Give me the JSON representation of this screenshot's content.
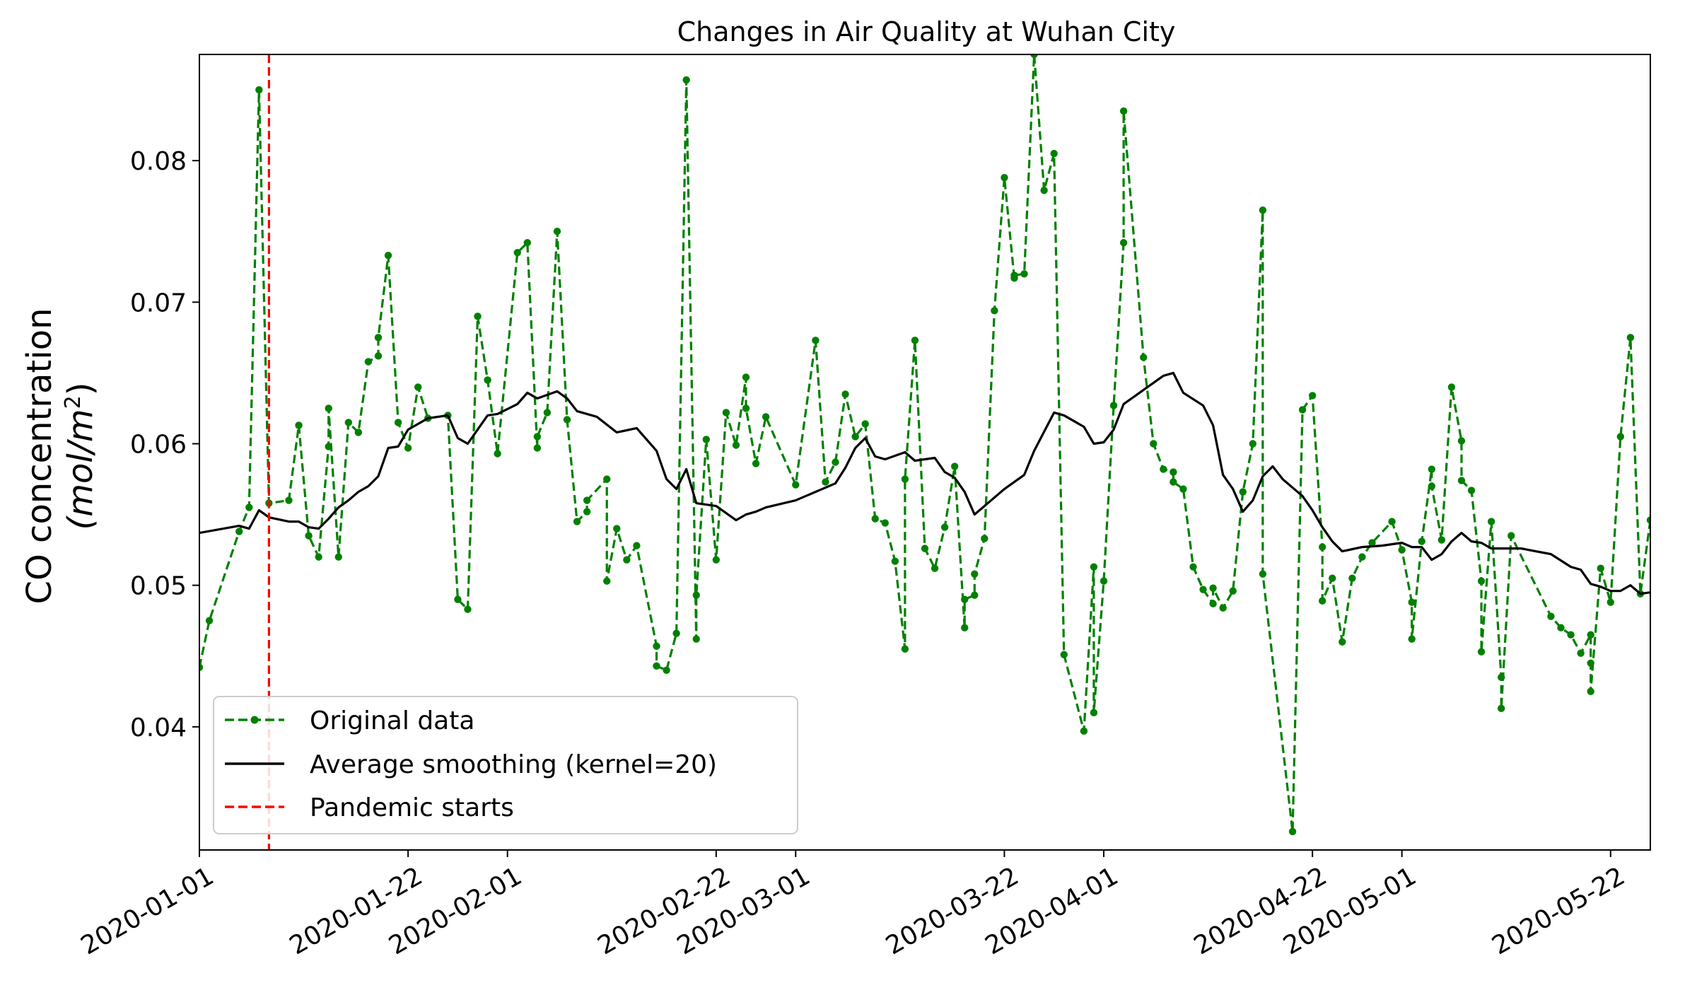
{
  "chart_data": {
    "type": "line",
    "title": "Changes in Air Quality at Wuhan City",
    "xlabel": "",
    "ylabel_line1": "CO concentration",
    "ylabel_line2": "(mol/m",
    "ylabel_sup": "2",
    "ylabel_close": ")",
    "xlim": [
      "2020-01-01",
      "2020-05-26"
    ],
    "ylim": [
      0.0313,
      0.0875
    ],
    "grid": false,
    "legend_position": "lower-left",
    "x_tick_labels": [
      "2020-01-01",
      "2020-01-22",
      "2020-02-01",
      "2020-02-22",
      "2020-03-01",
      "2020-03-22",
      "2020-04-01",
      "2020-04-22",
      "2020-05-01",
      "2020-05-22"
    ],
    "y_ticks": [
      0.04,
      0.05,
      0.06,
      0.07,
      0.08
    ],
    "y_tick_labels": [
      "0.04",
      "0.05",
      "0.06",
      "0.07",
      "0.08"
    ],
    "series": [
      {
        "name": "Original data",
        "color": "#008000",
        "style": "dashed-with-dots",
        "points": [
          [
            "2020-01-01",
            0.0442
          ],
          [
            "2020-01-02",
            0.0475
          ],
          [
            "2020-01-05",
            0.0538
          ],
          [
            "2020-01-06",
            0.0555
          ],
          [
            "2020-01-07",
            0.085
          ],
          [
            "2020-01-08",
            0.0558
          ],
          [
            "2020-01-10",
            0.056
          ],
          [
            "2020-01-11",
            0.0613
          ],
          [
            "2020-01-12",
            0.0535
          ],
          [
            "2020-01-13",
            0.052
          ],
          [
            "2020-01-14",
            0.0598
          ],
          [
            "2020-01-14",
            0.0625
          ],
          [
            "2020-01-15",
            0.052
          ],
          [
            "2020-01-16",
            0.0615
          ],
          [
            "2020-01-17",
            0.0608
          ],
          [
            "2020-01-18",
            0.0658
          ],
          [
            "2020-01-19",
            0.0662
          ],
          [
            "2020-01-19",
            0.0675
          ],
          [
            "2020-01-20",
            0.0733
          ],
          [
            "2020-01-21",
            0.0615
          ],
          [
            "2020-01-22",
            0.0597
          ],
          [
            "2020-01-23",
            0.064
          ],
          [
            "2020-01-24",
            0.0618
          ],
          [
            "2020-01-26",
            0.062
          ],
          [
            "2020-01-27",
            0.049
          ],
          [
            "2020-01-28",
            0.0483
          ],
          [
            "2020-01-29",
            0.069
          ],
          [
            "2020-01-30",
            0.0645
          ],
          [
            "2020-01-31",
            0.0593
          ],
          [
            "2020-02-02",
            0.0735
          ],
          [
            "2020-02-03",
            0.0742
          ],
          [
            "2020-02-04",
            0.0597
          ],
          [
            "2020-02-04",
            0.0605
          ],
          [
            "2020-02-05",
            0.0622
          ],
          [
            "2020-02-06",
            0.075
          ],
          [
            "2020-02-07",
            0.0617
          ],
          [
            "2020-02-08",
            0.0545
          ],
          [
            "2020-02-09",
            0.0552
          ],
          [
            "2020-02-09",
            0.056
          ],
          [
            "2020-02-11",
            0.0575
          ],
          [
            "2020-02-11",
            0.0503
          ],
          [
            "2020-02-12",
            0.054
          ],
          [
            "2020-02-13",
            0.0518
          ],
          [
            "2020-02-14",
            0.0528
          ],
          [
            "2020-02-16",
            0.0457
          ],
          [
            "2020-02-16",
            0.0443
          ],
          [
            "2020-02-17",
            0.044
          ],
          [
            "2020-02-18",
            0.0466
          ],
          [
            "2020-02-19",
            0.0857
          ],
          [
            "2020-02-20",
            0.0462
          ],
          [
            "2020-02-20",
            0.0493
          ],
          [
            "2020-02-21",
            0.0603
          ],
          [
            "2020-02-22",
            0.0518
          ],
          [
            "2020-02-23",
            0.0622
          ],
          [
            "2020-02-24",
            0.0599
          ],
          [
            "2020-02-25",
            0.0647
          ],
          [
            "2020-02-25",
            0.0625
          ],
          [
            "2020-02-26",
            0.0586
          ],
          [
            "2020-02-27",
            0.0619
          ],
          [
            "2020-03-01",
            0.0571
          ],
          [
            "2020-03-03",
            0.0673
          ],
          [
            "2020-03-04",
            0.0573
          ],
          [
            "2020-03-05",
            0.0587
          ],
          [
            "2020-03-06",
            0.0635
          ],
          [
            "2020-03-07",
            0.0605
          ],
          [
            "2020-03-08",
            0.0614
          ],
          [
            "2020-03-09",
            0.0547
          ],
          [
            "2020-03-10",
            0.0544
          ],
          [
            "2020-03-11",
            0.0517
          ],
          [
            "2020-03-12",
            0.0455
          ],
          [
            "2020-03-12",
            0.0575
          ],
          [
            "2020-03-13",
            0.0673
          ],
          [
            "2020-03-14",
            0.0526
          ],
          [
            "2020-03-15",
            0.0512
          ],
          [
            "2020-03-16",
            0.0541
          ],
          [
            "2020-03-17",
            0.0584
          ],
          [
            "2020-03-18",
            0.047
          ],
          [
            "2020-03-18",
            0.049
          ],
          [
            "2020-03-19",
            0.0493
          ],
          [
            "2020-03-19",
            0.0508
          ],
          [
            "2020-03-20",
            0.0533
          ],
          [
            "2020-03-21",
            0.0694
          ],
          [
            "2020-03-22",
            0.0788
          ],
          [
            "2020-03-23",
            0.0717
          ],
          [
            "2020-03-23",
            0.0719
          ],
          [
            "2020-03-24",
            0.072
          ],
          [
            "2020-03-25",
            0.0875
          ],
          [
            "2020-03-26",
            0.0779
          ],
          [
            "2020-03-27",
            0.0805
          ],
          [
            "2020-03-28",
            0.0451
          ],
          [
            "2020-03-30",
            0.0397
          ],
          [
            "2020-03-31",
            0.0513
          ],
          [
            "2020-03-31",
            0.041
          ],
          [
            "2020-04-01",
            0.0503
          ],
          [
            "2020-04-02",
            0.0627
          ],
          [
            "2020-04-03",
            0.0742
          ],
          [
            "2020-04-03",
            0.0835
          ],
          [
            "2020-04-05",
            0.0661
          ],
          [
            "2020-04-06",
            0.06
          ],
          [
            "2020-04-07",
            0.0582
          ],
          [
            "2020-04-08",
            0.058
          ],
          [
            "2020-04-08",
            0.0573
          ],
          [
            "2020-04-09",
            0.0568
          ],
          [
            "2020-04-10",
            0.0513
          ],
          [
            "2020-04-11",
            0.0497
          ],
          [
            "2020-04-12",
            0.0487
          ],
          [
            "2020-04-12",
            0.0498
          ],
          [
            "2020-04-13",
            0.0484
          ],
          [
            "2020-04-14",
            0.0496
          ],
          [
            "2020-04-15",
            0.0566
          ],
          [
            "2020-04-16",
            0.06
          ],
          [
            "2020-04-17",
            0.0765
          ],
          [
            "2020-04-17",
            0.0508
          ],
          [
            "2020-04-20",
            0.0326
          ],
          [
            "2020-04-21",
            0.0624
          ],
          [
            "2020-04-22",
            0.0634
          ],
          [
            "2020-04-23",
            0.0527
          ],
          [
            "2020-04-23",
            0.0489
          ],
          [
            "2020-04-24",
            0.0505
          ],
          [
            "2020-04-25",
            0.046
          ],
          [
            "2020-04-26",
            0.0505
          ],
          [
            "2020-04-27",
            0.052
          ],
          [
            "2020-04-28",
            0.053
          ],
          [
            "2020-04-30",
            0.0545
          ],
          [
            "2020-05-01",
            0.0525
          ],
          [
            "2020-05-02",
            0.0488
          ],
          [
            "2020-05-02",
            0.0462
          ],
          [
            "2020-05-03",
            0.0531
          ],
          [
            "2020-05-04",
            0.0582
          ],
          [
            "2020-05-04",
            0.057
          ],
          [
            "2020-05-05",
            0.0532
          ],
          [
            "2020-05-06",
            0.064
          ],
          [
            "2020-05-07",
            0.0602
          ],
          [
            "2020-05-07",
            0.0574
          ],
          [
            "2020-05-08",
            0.0567
          ],
          [
            "2020-05-09",
            0.0503
          ],
          [
            "2020-05-09",
            0.0453
          ],
          [
            "2020-05-10",
            0.0545
          ],
          [
            "2020-05-11",
            0.0435
          ],
          [
            "2020-05-11",
            0.0413
          ],
          [
            "2020-05-12",
            0.0535
          ],
          [
            "2020-05-16",
            0.0478
          ],
          [
            "2020-05-17",
            0.047
          ],
          [
            "2020-05-18",
            0.0465
          ],
          [
            "2020-05-19",
            0.0452
          ],
          [
            "2020-05-20",
            0.0465
          ],
          [
            "2020-05-20",
            0.0445
          ],
          [
            "2020-05-20",
            0.0425
          ],
          [
            "2020-05-21",
            0.0512
          ],
          [
            "2020-05-22",
            0.0488
          ],
          [
            "2020-05-23",
            0.0605
          ],
          [
            "2020-05-24",
            0.0675
          ],
          [
            "2020-05-25",
            0.0494
          ],
          [
            "2020-05-26",
            0.0546
          ]
        ]
      },
      {
        "name": "Average smoothing (kernel=20)",
        "color": "#000000",
        "style": "solid",
        "points": [
          [
            "2020-01-01",
            0.0537
          ],
          [
            "2020-01-05",
            0.0542
          ],
          [
            "2020-01-06",
            0.054
          ],
          [
            "2020-01-07",
            0.0553
          ],
          [
            "2020-01-08",
            0.0548
          ],
          [
            "2020-01-10",
            0.0545
          ],
          [
            "2020-01-11",
            0.0545
          ],
          [
            "2020-01-12",
            0.0541
          ],
          [
            "2020-01-13",
            0.054
          ],
          [
            "2020-01-14",
            0.0547
          ],
          [
            "2020-01-15",
            0.0555
          ],
          [
            "2020-01-16",
            0.056
          ],
          [
            "2020-01-17",
            0.0566
          ],
          [
            "2020-01-18",
            0.057
          ],
          [
            "2020-01-19",
            0.0577
          ],
          [
            "2020-01-20",
            0.0597
          ],
          [
            "2020-01-21",
            0.0598
          ],
          [
            "2020-01-22",
            0.061
          ],
          [
            "2020-01-24",
            0.0618
          ],
          [
            "2020-01-26",
            0.062
          ],
          [
            "2020-01-27",
            0.0604
          ],
          [
            "2020-01-28",
            0.06
          ],
          [
            "2020-01-29",
            0.061
          ],
          [
            "2020-01-30",
            0.062
          ],
          [
            "2020-01-31",
            0.0621
          ],
          [
            "2020-02-02",
            0.0628
          ],
          [
            "2020-02-03",
            0.0636
          ],
          [
            "2020-02-04",
            0.0632
          ],
          [
            "2020-02-06",
            0.0637
          ],
          [
            "2020-02-07",
            0.0632
          ],
          [
            "2020-02-08",
            0.0623
          ],
          [
            "2020-02-10",
            0.0619
          ],
          [
            "2020-02-12",
            0.0608
          ],
          [
            "2020-02-14",
            0.0611
          ],
          [
            "2020-02-16",
            0.0595
          ],
          [
            "2020-02-17",
            0.0575
          ],
          [
            "2020-02-18",
            0.0568
          ],
          [
            "2020-02-19",
            0.0582
          ],
          [
            "2020-02-20",
            0.0558
          ],
          [
            "2020-02-22",
            0.0556
          ],
          [
            "2020-02-24",
            0.0546
          ],
          [
            "2020-02-25",
            0.055
          ],
          [
            "2020-02-26",
            0.0552
          ],
          [
            "2020-02-27",
            0.0555
          ],
          [
            "2020-03-01",
            0.056
          ],
          [
            "2020-03-05",
            0.0572
          ],
          [
            "2020-03-06",
            0.0583
          ],
          [
            "2020-03-07",
            0.0597
          ],
          [
            "2020-03-08",
            0.0604
          ],
          [
            "2020-03-09",
            0.0591
          ],
          [
            "2020-03-10",
            0.0589
          ],
          [
            "2020-03-12",
            0.0594
          ],
          [
            "2020-03-13",
            0.0588
          ],
          [
            "2020-03-15",
            0.059
          ],
          [
            "2020-03-16",
            0.058
          ],
          [
            "2020-03-17",
            0.0576
          ],
          [
            "2020-03-18",
            0.0566
          ],
          [
            "2020-03-19",
            0.055
          ],
          [
            "2020-03-21",
            0.0562
          ],
          [
            "2020-03-22",
            0.0568
          ],
          [
            "2020-03-24",
            0.0578
          ],
          [
            "2020-03-25",
            0.0595
          ],
          [
            "2020-03-27",
            0.0622
          ],
          [
            "2020-03-28",
            0.062
          ],
          [
            "2020-03-30",
            0.0612
          ],
          [
            "2020-03-31",
            0.06
          ],
          [
            "2020-04-01",
            0.0601
          ],
          [
            "2020-04-02",
            0.061
          ],
          [
            "2020-04-03",
            0.0628
          ],
          [
            "2020-04-06",
            0.0643
          ],
          [
            "2020-04-07",
            0.0648
          ],
          [
            "2020-04-08",
            0.065
          ],
          [
            "2020-04-09",
            0.0636
          ],
          [
            "2020-04-11",
            0.0627
          ],
          [
            "2020-04-12",
            0.0613
          ],
          [
            "2020-04-13",
            0.0578
          ],
          [
            "2020-04-14",
            0.0568
          ],
          [
            "2020-04-15",
            0.0552
          ],
          [
            "2020-04-16",
            0.056
          ],
          [
            "2020-04-17",
            0.0577
          ],
          [
            "2020-04-18",
            0.0584
          ],
          [
            "2020-04-19",
            0.0575
          ],
          [
            "2020-04-21",
            0.0563
          ],
          [
            "2020-04-22",
            0.0553
          ],
          [
            "2020-04-23",
            0.0541
          ],
          [
            "2020-04-24",
            0.0531
          ],
          [
            "2020-04-25",
            0.0524
          ],
          [
            "2020-04-27",
            0.0527
          ],
          [
            "2020-04-29",
            0.0528
          ],
          [
            "2020-05-01",
            0.053
          ],
          [
            "2020-05-02",
            0.0527
          ],
          [
            "2020-05-03",
            0.0527
          ],
          [
            "2020-05-04",
            0.0518
          ],
          [
            "2020-05-05",
            0.0522
          ],
          [
            "2020-05-06",
            0.0531
          ],
          [
            "2020-05-07",
            0.0537
          ],
          [
            "2020-05-08",
            0.0531
          ],
          [
            "2020-05-09",
            0.053
          ],
          [
            "2020-05-10",
            0.0526
          ],
          [
            "2020-05-13",
            0.0526
          ],
          [
            "2020-05-16",
            0.0522
          ],
          [
            "2020-05-18",
            0.0513
          ],
          [
            "2020-05-19",
            0.0511
          ],
          [
            "2020-05-20",
            0.0501
          ],
          [
            "2020-05-21",
            0.0499
          ],
          [
            "2020-05-22",
            0.0496
          ],
          [
            "2020-05-23",
            0.0496
          ],
          [
            "2020-05-24",
            0.05
          ],
          [
            "2020-05-25",
            0.0494
          ],
          [
            "2020-05-26",
            0.0495
          ]
        ]
      },
      {
        "name": "Pandemic starts",
        "color": "#ff0000",
        "style": "dashed-vertical",
        "x": "2020-01-08"
      }
    ]
  }
}
